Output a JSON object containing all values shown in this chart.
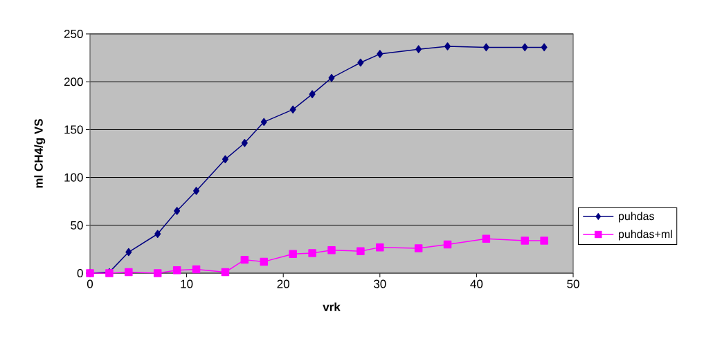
{
  "chart_data": {
    "type": "line",
    "xlabel": "vrk",
    "ylabel": "ml CH4/g VS",
    "x": [
      0,
      2,
      4,
      7,
      9,
      11,
      14,
      16,
      18,
      21,
      23,
      25,
      28,
      30,
      34,
      37,
      41,
      45,
      47
    ],
    "series": [
      {
        "name": "puhdas",
        "color": "#000080",
        "marker": "diamond",
        "values": [
          0,
          1,
          22,
          41,
          65,
          86,
          119,
          136,
          158,
          171,
          187,
          204,
          220,
          229,
          234,
          237,
          236,
          236,
          236
        ]
      },
      {
        "name": "puhdas+ml",
        "color": "#ff00ff",
        "marker": "square",
        "values": [
          0,
          0,
          1,
          0,
          3,
          4,
          1,
          14,
          12,
          20,
          21,
          24,
          23,
          27,
          26,
          30,
          36,
          34,
          34
        ]
      }
    ],
    "xlim": [
      0,
      50
    ],
    "xticks": [
      0,
      10,
      20,
      30,
      40,
      50
    ],
    "ylim": [
      0,
      250
    ],
    "yticks": [
      0,
      50,
      100,
      150,
      200,
      250
    ],
    "grid": "y",
    "legend": "right",
    "line_style": "solid"
  }
}
